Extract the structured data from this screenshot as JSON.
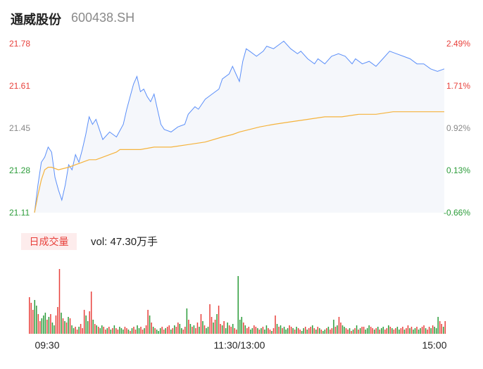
{
  "header": {
    "name": "通威股份",
    "code": "600438.SH"
  },
  "volume_panel": {
    "badge": "日成交量",
    "vol_text": "vol: 47.30万手"
  },
  "colors": {
    "price_line": "#5b8ff9",
    "avg_line": "#f5b33c",
    "area_fill": "#f5f7fb",
    "up": "#e8413c",
    "down": "#2c9c3a",
    "neutral": "#888888"
  },
  "chart_data": [
    {
      "type": "line",
      "series": [],
      "price_ticks": [
        {
          "label": "21.78",
          "value": 21.78,
          "color": "#e8413c"
        },
        {
          "label": "21.61",
          "value": 21.61,
          "color": "#e8413c"
        },
        {
          "label": "21.45",
          "value": 21.45,
          "color": "#888888"
        },
        {
          "label": "21.28",
          "value": 21.28,
          "color": "#2c9c3a"
        },
        {
          "label": "21.11",
          "value": 21.11,
          "color": "#2c9c3a"
        }
      ],
      "pct_ticks": [
        {
          "label": "2.49%",
          "color": "#e8413c"
        },
        {
          "label": "1.71%",
          "color": "#e8413c"
        },
        {
          "label": "0.92%",
          "color": "#888888"
        },
        {
          "label": "0.13%",
          "color": "#2c9c3a"
        },
        {
          "label": "-0.66%",
          "color": "#2c9c3a"
        }
      ],
      "ylim": [
        21.11,
        21.78
      ],
      "price_points": [
        [
          0,
          21.11
        ],
        [
          2,
          21.22
        ],
        [
          4,
          21.31
        ],
        [
          6,
          21.33
        ],
        [
          8,
          21.37
        ],
        [
          10,
          21.35
        ],
        [
          12,
          21.25
        ],
        [
          14,
          21.2
        ],
        [
          16,
          21.16
        ],
        [
          18,
          21.22
        ],
        [
          20,
          21.3
        ],
        [
          22,
          21.28
        ],
        [
          24,
          21.34
        ],
        [
          26,
          21.31
        ],
        [
          28,
          21.36
        ],
        [
          30,
          21.42
        ],
        [
          32,
          21.49
        ],
        [
          34,
          21.46
        ],
        [
          36,
          21.48
        ],
        [
          38,
          21.44
        ],
        [
          40,
          21.4
        ],
        [
          44,
          21.43
        ],
        [
          48,
          21.41
        ],
        [
          52,
          21.46
        ],
        [
          54,
          21.52
        ],
        [
          56,
          21.57
        ],
        [
          58,
          21.62
        ],
        [
          60,
          21.65
        ],
        [
          62,
          21.59
        ],
        [
          64,
          21.6
        ],
        [
          66,
          21.57
        ],
        [
          68,
          21.55
        ],
        [
          70,
          21.58
        ],
        [
          72,
          21.52
        ],
        [
          74,
          21.46
        ],
        [
          76,
          21.44
        ],
        [
          80,
          21.43
        ],
        [
          84,
          21.45
        ],
        [
          88,
          21.46
        ],
        [
          90,
          21.5
        ],
        [
          94,
          21.53
        ],
        [
          96,
          21.52
        ],
        [
          100,
          21.56
        ],
        [
          104,
          21.58
        ],
        [
          108,
          21.6
        ],
        [
          110,
          21.64
        ],
        [
          114,
          21.66
        ],
        [
          116,
          21.69
        ],
        [
          118,
          21.66
        ],
        [
          120,
          21.63
        ],
        [
          122,
          21.71
        ],
        [
          124,
          21.76
        ],
        [
          126,
          21.75
        ],
        [
          130,
          21.73
        ],
        [
          134,
          21.75
        ],
        [
          136,
          21.77
        ],
        [
          140,
          21.76
        ],
        [
          144,
          21.78
        ],
        [
          146,
          21.79
        ],
        [
          150,
          21.76
        ],
        [
          154,
          21.74
        ],
        [
          156,
          21.75
        ],
        [
          160,
          21.72
        ],
        [
          164,
          21.7
        ],
        [
          166,
          21.72
        ],
        [
          170,
          21.7
        ],
        [
          174,
          21.73
        ],
        [
          178,
          21.74
        ],
        [
          182,
          21.73
        ],
        [
          186,
          21.7
        ],
        [
          188,
          21.72
        ],
        [
          192,
          21.7
        ],
        [
          196,
          21.71
        ],
        [
          200,
          21.69
        ],
        [
          204,
          21.72
        ],
        [
          208,
          21.75
        ],
        [
          212,
          21.74
        ],
        [
          216,
          21.73
        ],
        [
          220,
          21.72
        ],
        [
          224,
          21.7
        ],
        [
          228,
          21.7
        ],
        [
          232,
          21.68
        ],
        [
          236,
          21.67
        ],
        [
          240,
          21.68
        ]
      ],
      "avg_points": [
        [
          0,
          21.11
        ],
        [
          2,
          21.18
        ],
        [
          4,
          21.24
        ],
        [
          6,
          21.28
        ],
        [
          8,
          21.29
        ],
        [
          10,
          21.29
        ],
        [
          14,
          21.28
        ],
        [
          20,
          21.29
        ],
        [
          24,
          21.3
        ],
        [
          28,
          21.31
        ],
        [
          32,
          21.32
        ],
        [
          36,
          21.32
        ],
        [
          40,
          21.33
        ],
        [
          44,
          21.34
        ],
        [
          48,
          21.35
        ],
        [
          50,
          21.36
        ],
        [
          56,
          21.36
        ],
        [
          62,
          21.36
        ],
        [
          70,
          21.37
        ],
        [
          80,
          21.37
        ],
        [
          90,
          21.38
        ],
        [
          100,
          21.39
        ],
        [
          110,
          21.41
        ],
        [
          116,
          21.42
        ],
        [
          120,
          21.43
        ],
        [
          126,
          21.44
        ],
        [
          132,
          21.45
        ],
        [
          140,
          21.46
        ],
        [
          150,
          21.47
        ],
        [
          160,
          21.48
        ],
        [
          170,
          21.49
        ],
        [
          180,
          21.49
        ],
        [
          190,
          21.5
        ],
        [
          200,
          21.5
        ],
        [
          210,
          21.51
        ],
        [
          220,
          21.51
        ],
        [
          230,
          21.51
        ],
        [
          240,
          21.51
        ]
      ]
    },
    {
      "type": "bar",
      "x_ticks": [
        "09:30",
        "11:30/13:00",
        "15:00"
      ],
      "values": [
        52,
        44,
        34,
        48,
        40,
        28,
        18,
        22,
        26,
        30,
        20,
        24,
        28,
        16,
        12,
        26,
        38,
        92,
        30,
        22,
        18,
        16,
        24,
        22,
        12,
        8,
        10,
        6,
        10,
        14,
        8,
        34,
        26,
        18,
        32,
        60,
        20,
        14,
        12,
        10,
        8,
        12,
        10,
        6,
        8,
        10,
        6,
        8,
        12,
        8,
        6,
        10,
        8,
        6,
        10,
        8,
        6,
        4,
        8,
        10,
        6,
        12,
        8,
        10,
        6,
        8,
        12,
        34,
        26,
        16,
        10,
        8,
        6,
        4,
        8,
        10,
        6,
        8,
        10,
        12,
        6,
        8,
        12,
        10,
        16,
        14,
        8,
        6,
        10,
        36,
        20,
        14,
        10,
        12,
        8,
        16,
        10,
        28,
        18,
        12,
        8,
        10,
        42,
        24,
        16,
        20,
        28,
        40,
        14,
        12,
        18,
        8,
        16,
        12,
        10,
        14,
        8,
        6,
        82,
        20,
        24,
        16,
        12,
        8,
        10,
        6,
        8,
        12,
        10,
        8,
        6,
        8,
        10,
        6,
        12,
        8,
        6,
        4,
        8,
        26,
        14,
        10,
        12,
        8,
        10,
        6,
        8,
        12,
        10,
        8,
        6,
        10,
        8,
        6,
        4,
        8,
        10,
        6,
        8,
        10,
        12,
        8,
        6,
        10,
        8,
        6,
        4,
        6,
        8,
        10,
        6,
        8,
        20,
        10,
        12,
        24,
        16,
        12,
        10,
        8,
        6,
        8,
        4,
        6,
        8,
        12,
        6,
        8,
        10,
        10,
        6,
        8,
        12,
        10,
        8,
        6,
        8,
        10,
        6,
        8,
        10,
        6,
        8,
        12,
        10,
        8,
        6,
        8,
        10,
        6,
        8,
        10,
        6,
        8,
        12,
        8,
        10,
        6,
        8,
        10,
        6,
        8,
        10,
        12,
        8,
        6,
        10,
        8,
        12,
        10,
        8,
        24,
        18,
        14,
        10,
        18
      ],
      "colors_seq": "rrrggrrgggrgrggrrrgrgrgrggrrgrrrggrrgrgrggrrgrgrgrrgggrrgrgrrggrrgrrgrgrgggrrgrrgrgrrggrrgrgrgrrgrgrggrrgrgrrgrggrrgrrgggrgrrggrrgrgrggrrgrrgrgrgggrrgrgrrggrgrrgrgrgrggrgrrgrgrrggrrgrgrgrgrrgggrrgrgrggrrgrgrrggrrgrrgrggrggrrgrrgrgggrrgrrrr"
    }
  ]
}
